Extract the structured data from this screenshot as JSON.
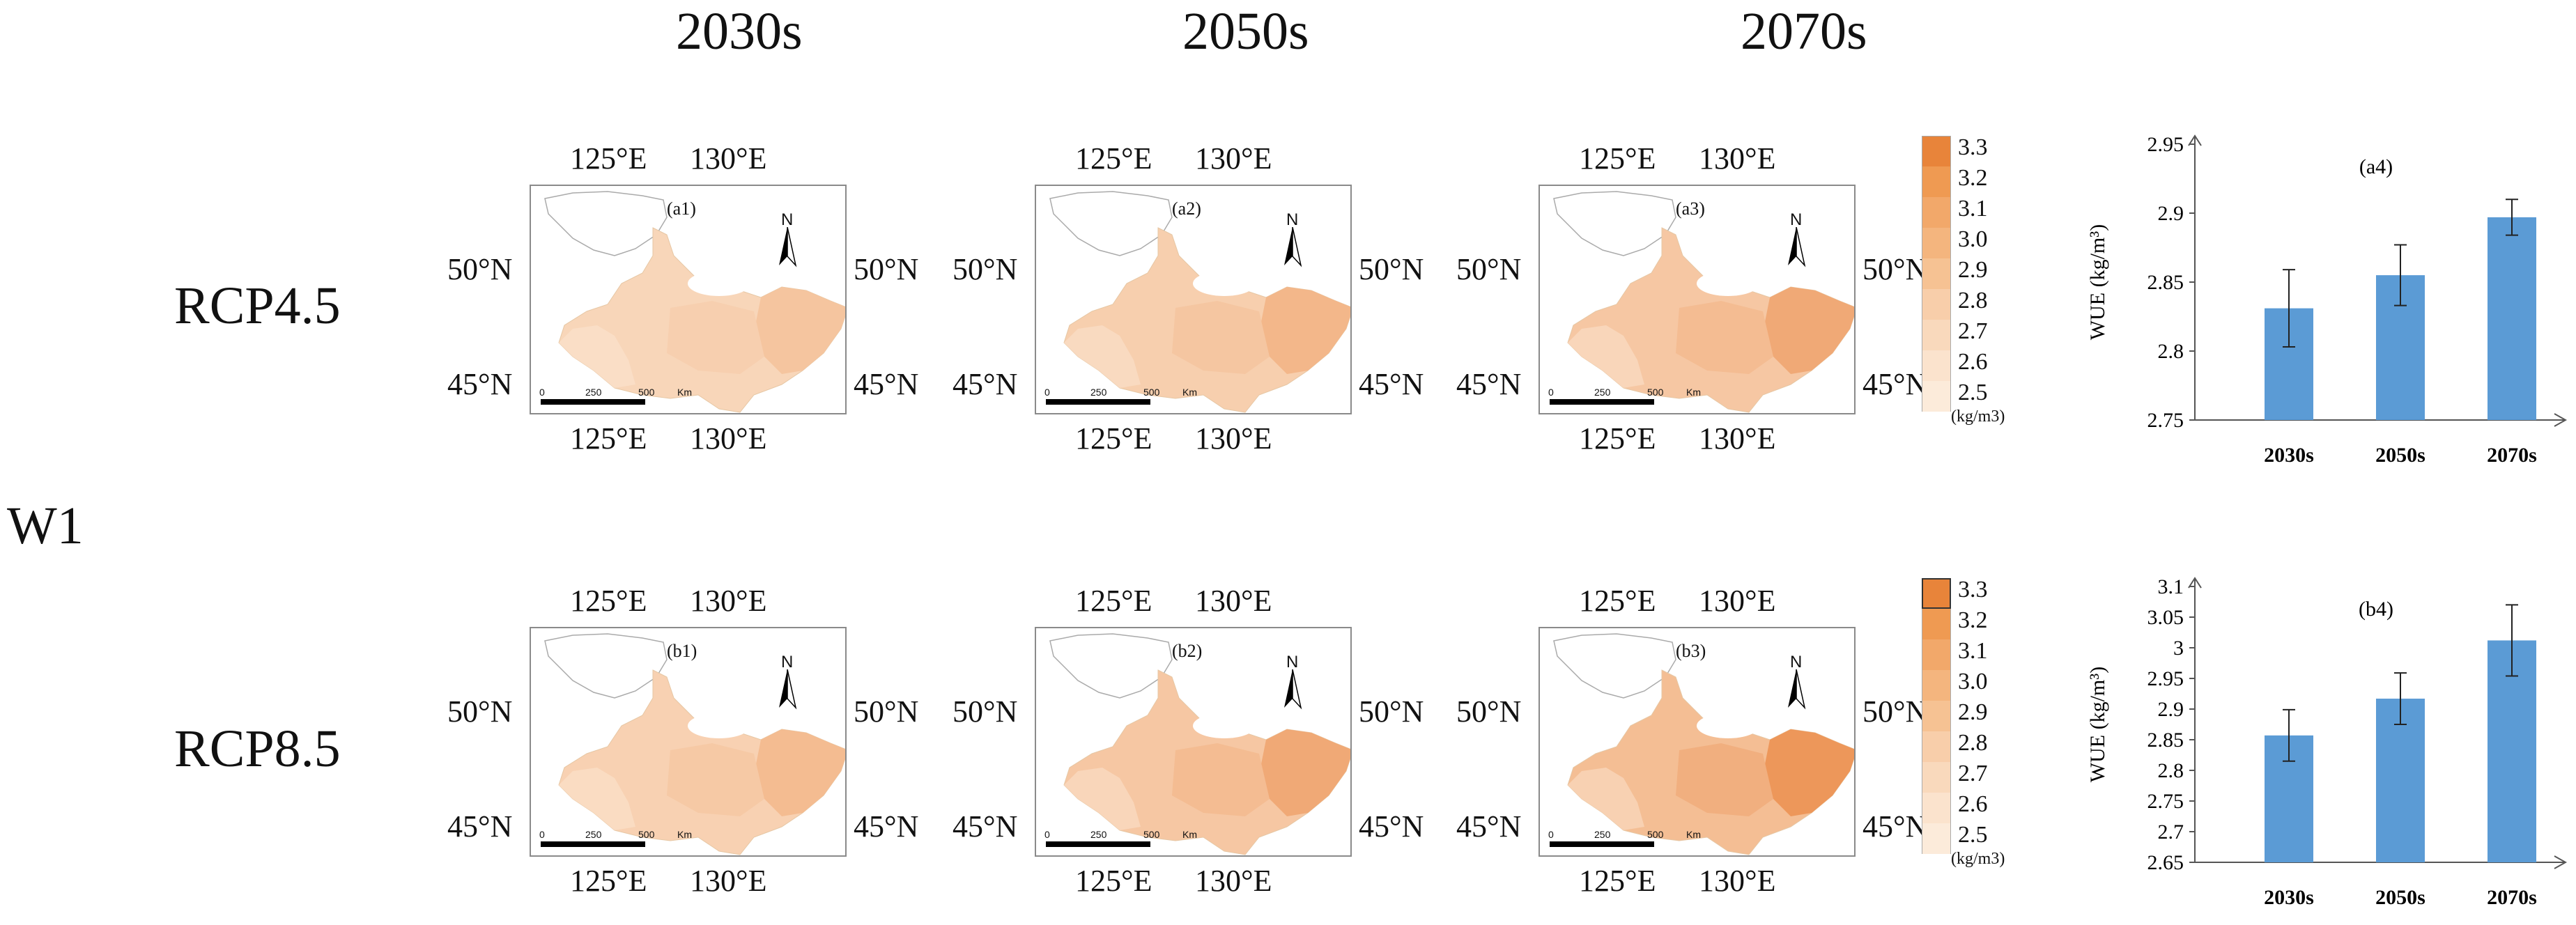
{
  "columns": [
    "2030s",
    "2050s",
    "2070s"
  ],
  "rows": [
    "RCP4.5",
    "RCP8.5"
  ],
  "group_label": "W1",
  "map": {
    "lon_ticks": [
      "125°E",
      "130°E"
    ],
    "lat_ticks": [
      "50°N",
      "45°N"
    ],
    "north": "N",
    "scale_labels": [
      "0",
      "250",
      "500",
      "Km"
    ]
  },
  "panels": [
    {
      "label": "(a1)",
      "level": 0.4
    },
    {
      "label": "(a2)",
      "level": 0.55
    },
    {
      "label": "(a3)",
      "level": 0.7
    },
    {
      "label": "(b1)",
      "level": 0.5
    },
    {
      "label": "(b2)",
      "level": 0.7
    },
    {
      "label": "(b3)",
      "level": 0.9
    }
  ],
  "legend": {
    "values": [
      "3.3",
      "3.2",
      "3.1",
      "3.0",
      "2.9",
      "2.8",
      "2.7",
      "2.6",
      "2.5"
    ],
    "unit": "(kg/m3)",
    "colors": [
      "#e8843a",
      "#ef9a52",
      "#f2a86a",
      "#f4b57e",
      "#f6c293",
      "#f8ceaa",
      "#f9d9bc",
      "#fbe3cd",
      "#fcebda"
    ]
  },
  "chart_data": [
    {
      "type": "bar",
      "panel": "(a4)",
      "categories": [
        "2030s",
        "2050s",
        "2070s"
      ],
      "values": [
        2.831,
        2.855,
        2.897
      ],
      "errors": [
        0.028,
        0.022,
        0.013
      ],
      "ylabel": "WUE (kg/m³)",
      "ylim": [
        2.75,
        2.95
      ],
      "yticks": [
        "2.95",
        "2.9",
        "2.85",
        "2.8",
        "2.75"
      ],
      "yticks_values": [
        2.95,
        2.9,
        2.85,
        2.8,
        2.75
      ],
      "color": "#5b9bd5"
    },
    {
      "type": "bar",
      "panel": "(b4)",
      "categories": [
        "2030s",
        "2050s",
        "2070s"
      ],
      "values": [
        2.857,
        2.917,
        3.012
      ],
      "errors": [
        0.042,
        0.042,
        0.058
      ],
      "ylabel": "WUE (kg/m³)",
      "ylim": [
        2.65,
        3.1
      ],
      "yticks": [
        "3.1",
        "3.05",
        "3",
        "2.95",
        "2.9",
        "2.85",
        "2.8",
        "2.75",
        "2.7",
        "2.65"
      ],
      "yticks_values": [
        3.1,
        3.05,
        3.0,
        2.95,
        2.9,
        2.85,
        2.8,
        2.75,
        2.7,
        2.65
      ],
      "color": "#5b9bd5"
    }
  ]
}
